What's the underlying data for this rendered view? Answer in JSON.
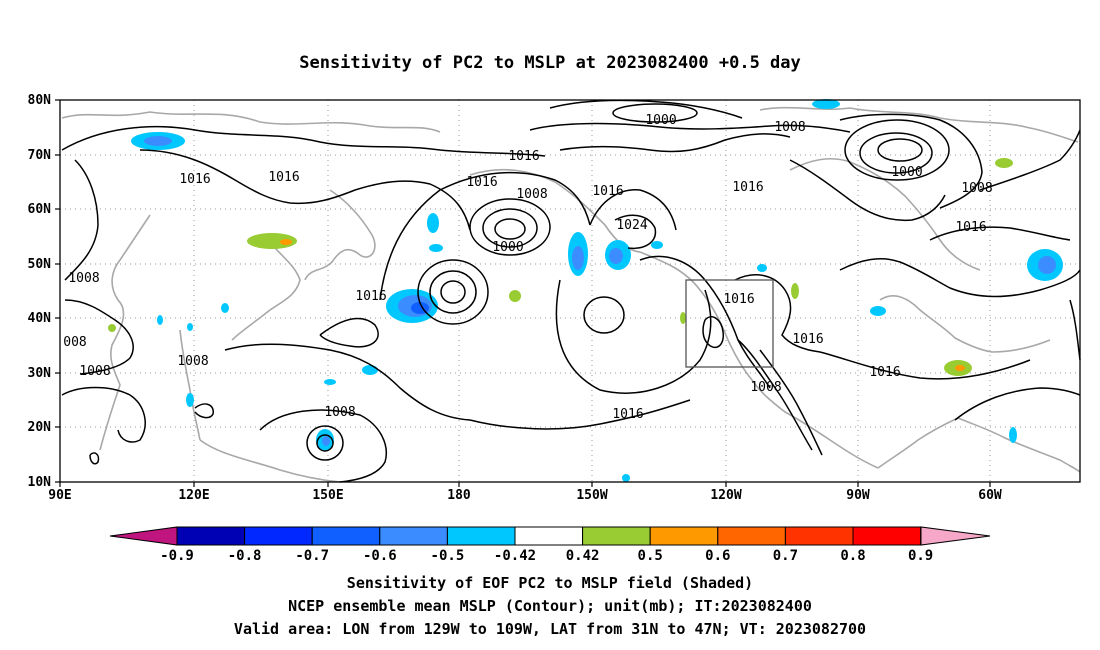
{
  "title": "Sensitivity of PC2 to MSLP at 2023082400 +0.5 day",
  "lat_ticks": [
    "80N",
    "70N",
    "60N",
    "50N",
    "40N",
    "30N",
    "20N",
    "10N"
  ],
  "lon_ticks": [
    "90E",
    "120E",
    "150E",
    "180",
    "150W",
    "120W",
    "90W",
    "60W"
  ],
  "contour_labels": [
    {
      "text": "1000"
    },
    {
      "text": "1008"
    },
    {
      "text": "1016"
    },
    {
      "text": "1016"
    },
    {
      "text": "1000"
    },
    {
      "text": "1008"
    },
    {
      "text": "1016"
    },
    {
      "text": "1016"
    },
    {
      "text": "1016"
    },
    {
      "text": "1008"
    },
    {
      "text": "1000"
    },
    {
      "text": "1016"
    },
    {
      "text": "1016"
    },
    {
      "text": "1024"
    },
    {
      "text": "1008"
    },
    {
      "text": "1008"
    },
    {
      "text": "008"
    },
    {
      "text": "1008"
    },
    {
      "text": "1016"
    },
    {
      "text": "1008"
    },
    {
      "text": "1016"
    },
    {
      "text": "1016"
    },
    {
      "text": "1008"
    },
    {
      "text": "1016"
    },
    {
      "text": "1016"
    }
  ],
  "colorbar": {
    "labels": [
      "-0.9",
      "-0.8",
      "-0.7",
      "-0.6",
      "-0.5",
      "-0.42",
      "0.42",
      "0.5",
      "0.6",
      "0.7",
      "0.8",
      "0.9"
    ],
    "colors": [
      "#0000b4",
      "#0028ff",
      "#1060ff",
      "#3a8cff",
      "#00c8ff",
      "#ffffff",
      "#99cc33",
      "#ff9900",
      "#ff6600",
      "#ff3300",
      "#ff0000"
    ],
    "low_end_color": "#c0157f",
    "high_end_color": "#f7a8c8"
  },
  "captions": {
    "line1": "Sensitivity of EOF PC2 to MSLP field (Shaded)",
    "line2": "NCEP ensemble mean MSLP (Contour); unit(mb); IT:2023082400",
    "line3": "Valid area: LON from 129W to 109W, LAT from 31N to 47N; VT: 2023082700"
  }
}
